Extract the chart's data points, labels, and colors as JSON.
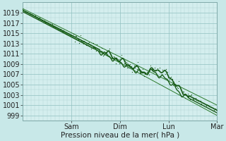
{
  "title": "",
  "xlabel": "Pression niveau de la mer( hPa )",
  "ylabel": "",
  "bg_color": "#c8e8e8",
  "plot_bg_color": "#d4eeee",
  "grid_minor_color": "#b0d4d4",
  "grid_major_color": "#90c0c0",
  "line_color_dark": "#1a5c1a",
  "line_color_medium": "#2a7a2a",
  "yticks": [
    999,
    1001,
    1003,
    1005,
    1007,
    1009,
    1011,
    1013,
    1015,
    1017,
    1019
  ],
  "ylim": [
    998.0,
    1021.0
  ],
  "xlim": [
    0,
    96
  ],
  "xtick_positions": [
    24,
    48,
    72,
    96
  ],
  "xtick_labels": [
    "Sam",
    "Dim",
    "Lun",
    "Mar"
  ]
}
